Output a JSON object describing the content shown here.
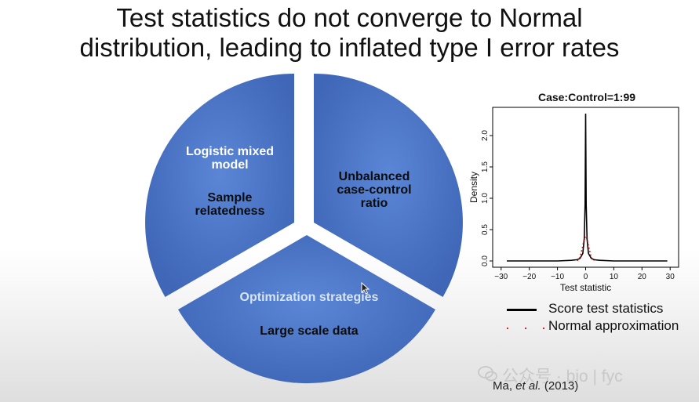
{
  "slide": {
    "title_line1": "Test statistics do not converge to Normal",
    "title_line2": "distribution, leading to inflated type I error rates"
  },
  "pie": {
    "left_label_line1": "Logistic mixed",
    "left_label_line2": "model",
    "left_sub_line1": "Sample",
    "left_sub_line2": "relatedness",
    "right_label_line1": "Unbalanced",
    "right_label_line2": "case-control",
    "right_label_line3": "ratio",
    "bottom_label": "Optimization strategies",
    "bottom_sub": "Large scale data",
    "fill_color": "#4a72c4",
    "bottom_label_color": "#d6e4f7"
  },
  "chart_data": {
    "type": "line",
    "title": "Case:Control=1:99",
    "xlabel": "Test statistic",
    "ylabel": "Density",
    "xlim": [
      -30,
      30
    ],
    "ylim": [
      0,
      2.4
    ],
    "x_ticks": [
      "−30",
      "−20",
      "−10",
      "0",
      "10",
      "20",
      "30"
    ],
    "y_ticks": [
      "0.0",
      "0.5",
      "1.0",
      "1.5",
      "2.0"
    ],
    "series": [
      {
        "name": "Score test statistics",
        "color": "#000000",
        "style": "solid",
        "x": [
          -28,
          -10,
          -5,
          -3,
          -2,
          -1,
          -0.5,
          -0.2,
          0,
          0.2,
          0.5,
          1,
          2,
          3,
          5,
          10,
          29
        ],
        "y": [
          0.0,
          0.0,
          0.01,
          0.02,
          0.04,
          0.12,
          0.35,
          0.9,
          2.35,
          0.9,
          0.35,
          0.12,
          0.04,
          0.02,
          0.01,
          0.0,
          0.0
        ]
      },
      {
        "name": "Normal approximation",
        "color": "#d40000",
        "style": "dotted",
        "x": [
          -3,
          -2,
          -1,
          -0.5,
          0,
          0.5,
          1,
          2,
          3
        ],
        "y": [
          0.004,
          0.054,
          0.242,
          0.352,
          0.399,
          0.352,
          0.242,
          0.054,
          0.004
        ]
      }
    ]
  },
  "legend": {
    "score_label": "Score test statistics",
    "normal_label": "Normal approximation"
  },
  "citation": {
    "author": "Ma, ",
    "etal": "et al.",
    "year": " (2013)"
  },
  "watermark": {
    "text": "公众号 · bio | fyc"
  }
}
